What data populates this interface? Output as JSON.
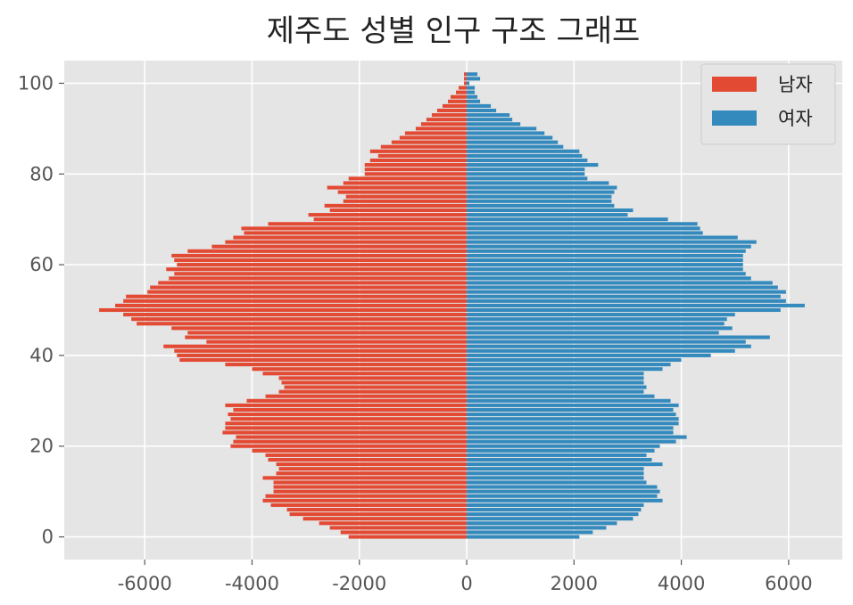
{
  "chart_data": {
    "type": "bar",
    "orientation": "horizontal",
    "title": "제주도 성별 인구 구조 그래프",
    "xlabel": "",
    "ylabel": "",
    "xlim": [
      -7500,
      7000
    ],
    "ylim": [
      -5,
      105
    ],
    "xticks": [
      -6000,
      -4000,
      -2000,
      0,
      2000,
      4000,
      6000
    ],
    "xtick_labels": [
      "-6000",
      "-4000",
      "-2000",
      "0",
      "2000",
      "4000",
      "6000"
    ],
    "yticks": [
      0,
      20,
      40,
      60,
      80,
      100
    ],
    "ytick_labels": [
      "0",
      "20",
      "40",
      "60",
      "80",
      "100"
    ],
    "grid": true,
    "legend": "top-right",
    "categories": [
      0,
      1,
      2,
      3,
      4,
      5,
      6,
      7,
      8,
      9,
      10,
      11,
      12,
      13,
      14,
      15,
      16,
      17,
      18,
      19,
      20,
      21,
      22,
      23,
      24,
      25,
      26,
      27,
      28,
      29,
      30,
      31,
      32,
      33,
      34,
      35,
      36,
      37,
      38,
      39,
      40,
      41,
      42,
      43,
      44,
      45,
      46,
      47,
      48,
      49,
      50,
      51,
      52,
      53,
      54,
      55,
      56,
      57,
      58,
      59,
      60,
      61,
      62,
      63,
      64,
      65,
      66,
      67,
      68,
      69,
      70,
      71,
      72,
      73,
      74,
      75,
      76,
      77,
      78,
      79,
      80,
      81,
      82,
      83,
      84,
      85,
      86,
      87,
      88,
      89,
      90,
      91,
      92,
      93,
      94,
      95,
      96,
      97,
      98,
      99,
      100
    ],
    "series": [
      {
        "name": "남자",
        "color": "#E24A33",
        "values": [
          -2200,
          -2350,
          -2550,
          -2750,
          -3050,
          -3300,
          -3350,
          -3650,
          -3800,
          -3750,
          -3600,
          -3600,
          -3600,
          -3800,
          -3550,
          -3500,
          -3550,
          -3700,
          -3750,
          -4000,
          -4400,
          -4350,
          -4300,
          -4550,
          -4500,
          -4500,
          -4400,
          -4450,
          -4350,
          -4500,
          -4100,
          -3750,
          -3500,
          -3400,
          -3450,
          -3500,
          -3800,
          -4000,
          -4500,
          -5350,
          -5400,
          -5450,
          -5650,
          -4850,
          -5250,
          -5200,
          -5500,
          -6150,
          -6250,
          -6400,
          -6850,
          -6550,
          -6400,
          -6350,
          -5950,
          -5900,
          -5750,
          -5550,
          -5450,
          -5600,
          -5400,
          -5450,
          -5500,
          -5200,
          -4750,
          -4500,
          -4350,
          -4150,
          -4200,
          -3700,
          -2850,
          -2950,
          -2550,
          -2650,
          -2300,
          -2250,
          -2400,
          -2600,
          -2300,
          -2200,
          -1900,
          -1900,
          -1900,
          -1800,
          -1650,
          -1800,
          -1600,
          -1400,
          -1250,
          -1150,
          -950,
          -850,
          -750,
          -650,
          -550,
          -450,
          -350,
          -300,
          -200,
          -150,
          -50
        ],
        "values_above_100": [
          -50,
          -50
        ]
      },
      {
        "name": "여자",
        "color": "#348ABD",
        "values": [
          2100,
          2350,
          2600,
          2800,
          3100,
          3200,
          3250,
          3300,
          3650,
          3550,
          3600,
          3550,
          3350,
          3300,
          3300,
          3300,
          3650,
          3450,
          3350,
          3500,
          3600,
          3900,
          4100,
          3850,
          3850,
          3950,
          3950,
          3900,
          3850,
          3950,
          3800,
          3500,
          3300,
          3350,
          3300,
          3300,
          3300,
          3650,
          3800,
          4000,
          4550,
          5000,
          5300,
          5200,
          5650,
          4700,
          4950,
          4800,
          4850,
          5000,
          5850,
          6300,
          5950,
          5850,
          5950,
          5800,
          5700,
          5300,
          5200,
          5150,
          5150,
          5150,
          5150,
          5200,
          5300,
          5400,
          5050,
          4400,
          4350,
          4300,
          3750,
          3000,
          3100,
          2750,
          2700,
          2700,
          2750,
          2800,
          2650,
          2250,
          2200,
          2200,
          2450,
          2250,
          2150,
          2100,
          1800,
          1700,
          1600,
          1450,
          1300,
          1000,
          850,
          800,
          550,
          450,
          250,
          200,
          150,
          150,
          50
        ],
        "values_above_100": [
          250,
          200
        ]
      }
    ]
  }
}
